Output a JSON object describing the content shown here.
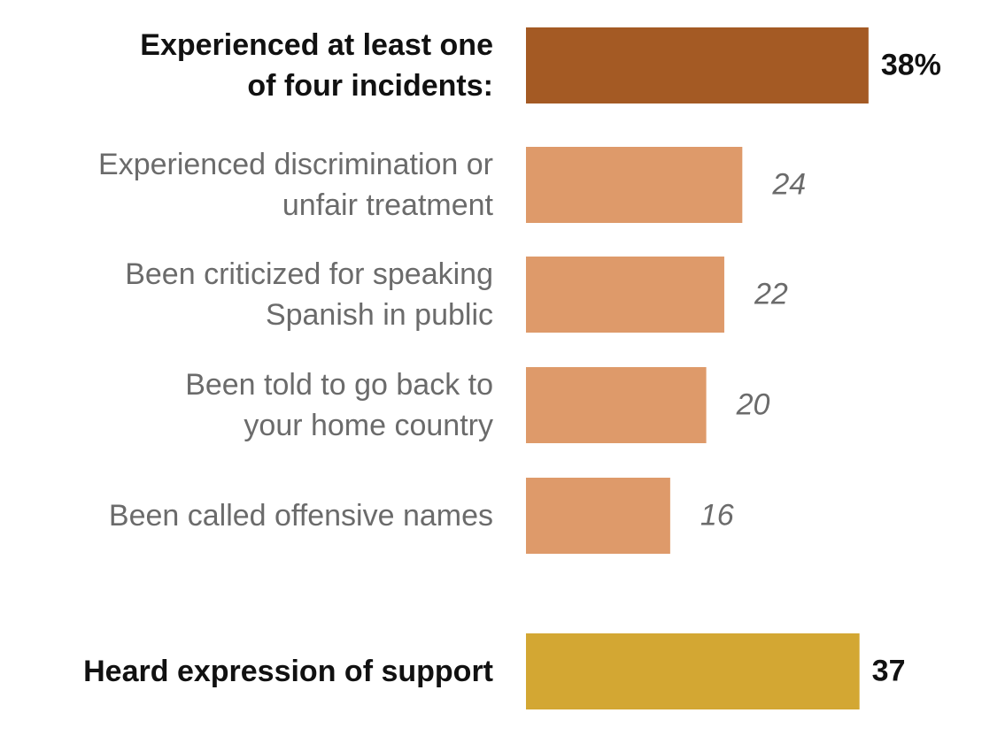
{
  "chart_data": {
    "type": "bar",
    "orientation": "horizontal",
    "categories": [
      "Experienced at least one\nof four incidents:",
      "Experienced discrimination or\nunfair treatment",
      "Been criticized  for speaking\nSpanish in public",
      "Been told to go back to\nyour home country",
      "Been called offensive names",
      "Heard expression of support"
    ],
    "values": [
      38,
      24,
      22,
      20,
      16,
      37
    ],
    "value_labels": [
      "38%",
      "24",
      "22",
      "20",
      "16",
      "37"
    ],
    "bold": [
      true,
      false,
      false,
      false,
      false,
      true
    ],
    "colors": [
      "#A45A24",
      "#DE9A6A",
      "#DE9A6A",
      "#DE9A6A",
      "#DE9A6A",
      "#D3A733"
    ],
    "unit": "%",
    "grid": false
  }
}
